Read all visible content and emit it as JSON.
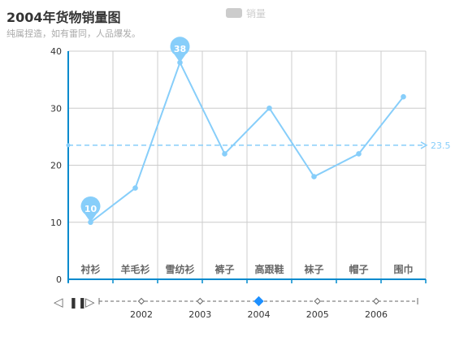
{
  "title": "2004年货物销量图",
  "subtitle": "纯属捏造，如有雷同，人品爆发。",
  "legend": {
    "label": "销量",
    "active": false
  },
  "colors": {
    "series": "#87cefa",
    "grid": "#cccccc",
    "axis": "#008acd",
    "label": "#333333",
    "timeline_active": "#1e90ff",
    "timeline": "#666666"
  },
  "chart_data": {
    "type": "line",
    "title": "2004年货物销量图",
    "subtitle": "纯属捏造，如有雷同，人品爆发。",
    "categories": [
      "衬衫",
      "羊毛衫",
      "雪纺衫",
      "裤子",
      "高跟鞋",
      "袜子",
      "帽子",
      "围巾"
    ],
    "series": [
      {
        "name": "销量",
        "values": [
          10,
          16,
          38,
          22,
          30,
          18,
          22,
          32
        ]
      }
    ],
    "ylim": [
      0,
      40
    ],
    "yticks": [
      0,
      10,
      20,
      30,
      40
    ],
    "grid": true,
    "mark_points": [
      {
        "label": "10",
        "category": "衬衫",
        "value": 10,
        "kind": "min"
      },
      {
        "label": "38",
        "category": "雪纺衫",
        "value": 38,
        "kind": "max"
      }
    ],
    "mark_line": {
      "label": "23.5",
      "value": 23.5,
      "kind": "average"
    }
  },
  "timeline": {
    "labels": [
      "2002",
      "2003",
      "2004",
      "2005",
      "2006"
    ],
    "points": [
      2002,
      2003,
      2004,
      2005,
      2006
    ],
    "current": 2004,
    "controls": {
      "prev": "◁",
      "play": "❚❚",
      "next": "▷"
    }
  }
}
